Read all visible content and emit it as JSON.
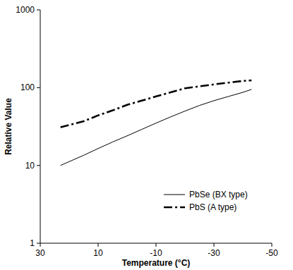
{
  "chart_data": {
    "type": "line",
    "x_label": "Temperature (°C)",
    "y_label": "Relative Value",
    "x": [
      23,
      15,
      10,
      5,
      0,
      -5,
      -10,
      -15,
      -20,
      -25,
      -30,
      -35,
      -40,
      -43
    ],
    "series": [
      {
        "name": "PbSe (BX type)",
        "color": "#000000",
        "line_style": "solid",
        "marker": "none",
        "values": [
          10,
          13.5,
          16.5,
          20,
          24,
          29,
          35,
          42,
          50,
          59,
          68,
          77,
          87,
          95
        ]
      },
      {
        "name": "PbS (A type)",
        "color": "#000000",
        "line_style": "dashdot",
        "marker": "none",
        "values": [
          31,
          37,
          44,
          51,
          60,
          68,
          77,
          87,
          98,
          104,
          110,
          116,
          122,
          124
        ]
      }
    ],
    "xlim": [
      30,
      -50
    ],
    "xticks": [
      30,
      10,
      -10,
      -30,
      -50
    ],
    "ylim": [
      1,
      1000
    ],
    "yticks": [
      1,
      10,
      100,
      1000
    ],
    "log": "y",
    "grid": false,
    "legend": "lower right"
  }
}
